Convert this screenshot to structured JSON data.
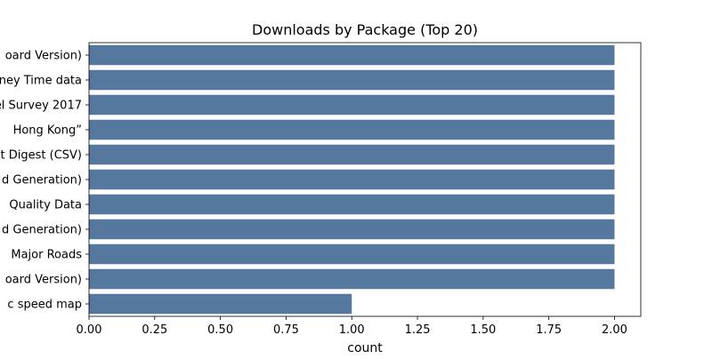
{
  "chart_data": {
    "type": "bar",
    "orientation": "horizontal",
    "title": "Downloads by Package (Top 20)",
    "xlabel": "count",
    "ylabel": "",
    "xlim": [
      0,
      2.1
    ],
    "xticks": [
      "0.00",
      "0.25",
      "0.50",
      "0.75",
      "1.00",
      "1.25",
      "1.50",
      "1.75",
      "2.00"
    ],
    "grid": false,
    "legend": "none",
    "bar_color": "#56789e",
    "categories": [
      "oard Version)",
      "ney Time data",
      "el Survey 2017",
      "Hong Kong”",
      "t Digest (CSV)",
      "d Generation)",
      "Quality Data",
      "d Generation)",
      "Major Roads",
      "oard Version)",
      "c speed map"
    ],
    "values": [
      2,
      2,
      2,
      2,
      2,
      2,
      2,
      2,
      2,
      2,
      1
    ]
  }
}
